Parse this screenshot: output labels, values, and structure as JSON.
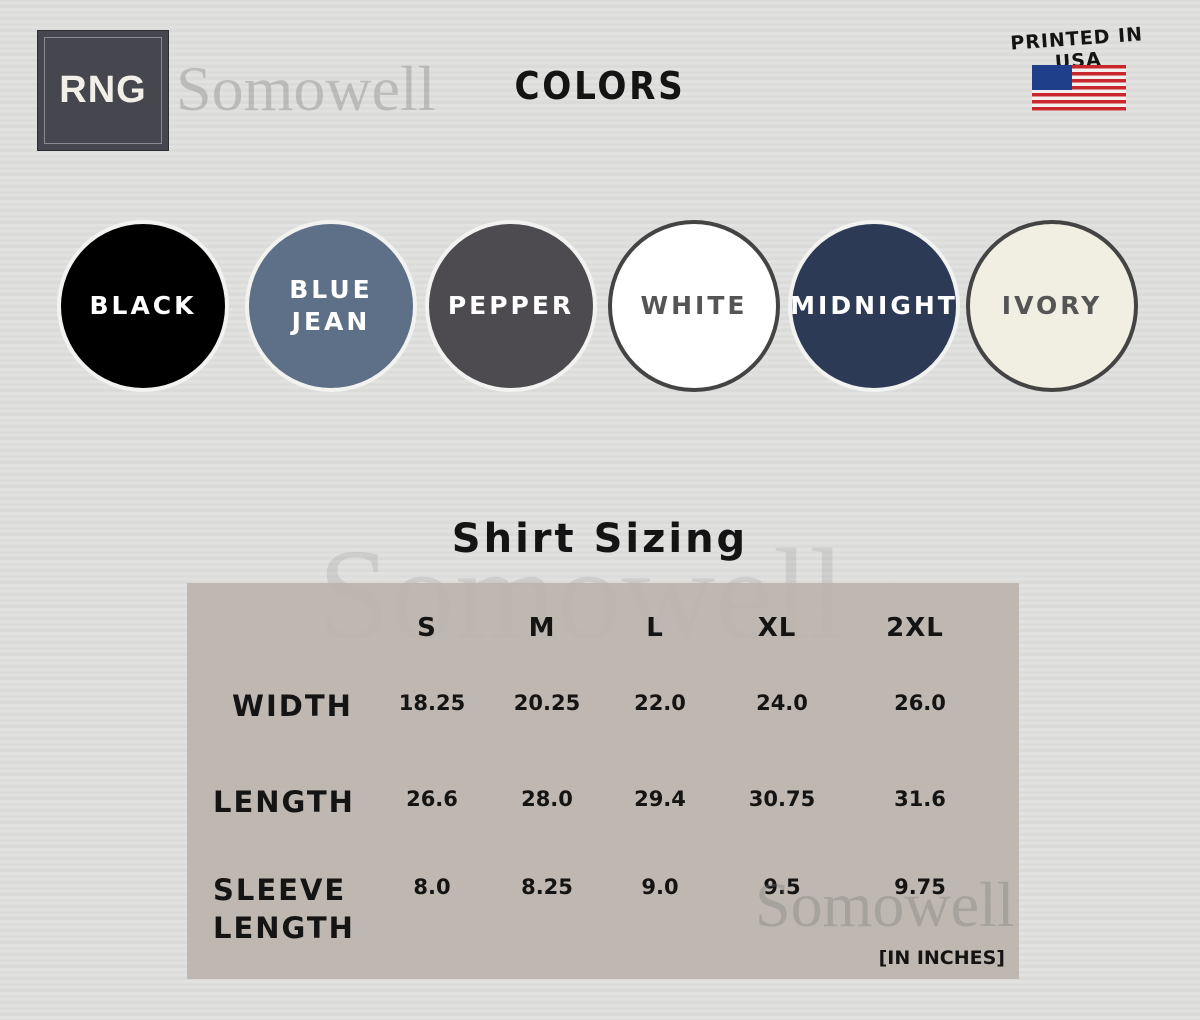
{
  "brand": {
    "logo_text": "RNG",
    "watermark": "Somowell"
  },
  "header": {
    "title": "COLORS",
    "badge_text": "PRINTED IN USA"
  },
  "colors": [
    {
      "label": "BLACK",
      "hex": "#000000",
      "text_color": "#ffffff"
    },
    {
      "label": "BLUE JEAN",
      "hex": "#5e6f88",
      "text_color": "#ffffff"
    },
    {
      "label": "PEPPER",
      "hex": "#4d4b4f",
      "text_color": "#ffffff"
    },
    {
      "label": "WHITE",
      "hex": "#ffffff",
      "text_color": "#555555"
    },
    {
      "label": "MIDNIGHT",
      "hex": "#2c3a55",
      "text_color": "#ffffff"
    },
    {
      "label": "IVORY",
      "hex": "#f1eee2",
      "text_color": "#555555"
    }
  ],
  "sizing": {
    "title": "Shirt Sizing",
    "sizes": [
      "S",
      "M",
      "L",
      "XL",
      "2XL"
    ],
    "rows": [
      {
        "label": "WIDTH",
        "values": [
          "18.25",
          "20.25",
          "22.0",
          "24.0",
          "26.0"
        ]
      },
      {
        "label": "LENGTH",
        "values": [
          "26.6",
          "28.0",
          "29.4",
          "30.75",
          "31.6"
        ]
      },
      {
        "label": "SLEEVE LENGTH",
        "values": [
          "8.0",
          "8.25",
          "9.0",
          "9.5",
          "9.75"
        ]
      }
    ],
    "units": "[IN INCHES]"
  }
}
